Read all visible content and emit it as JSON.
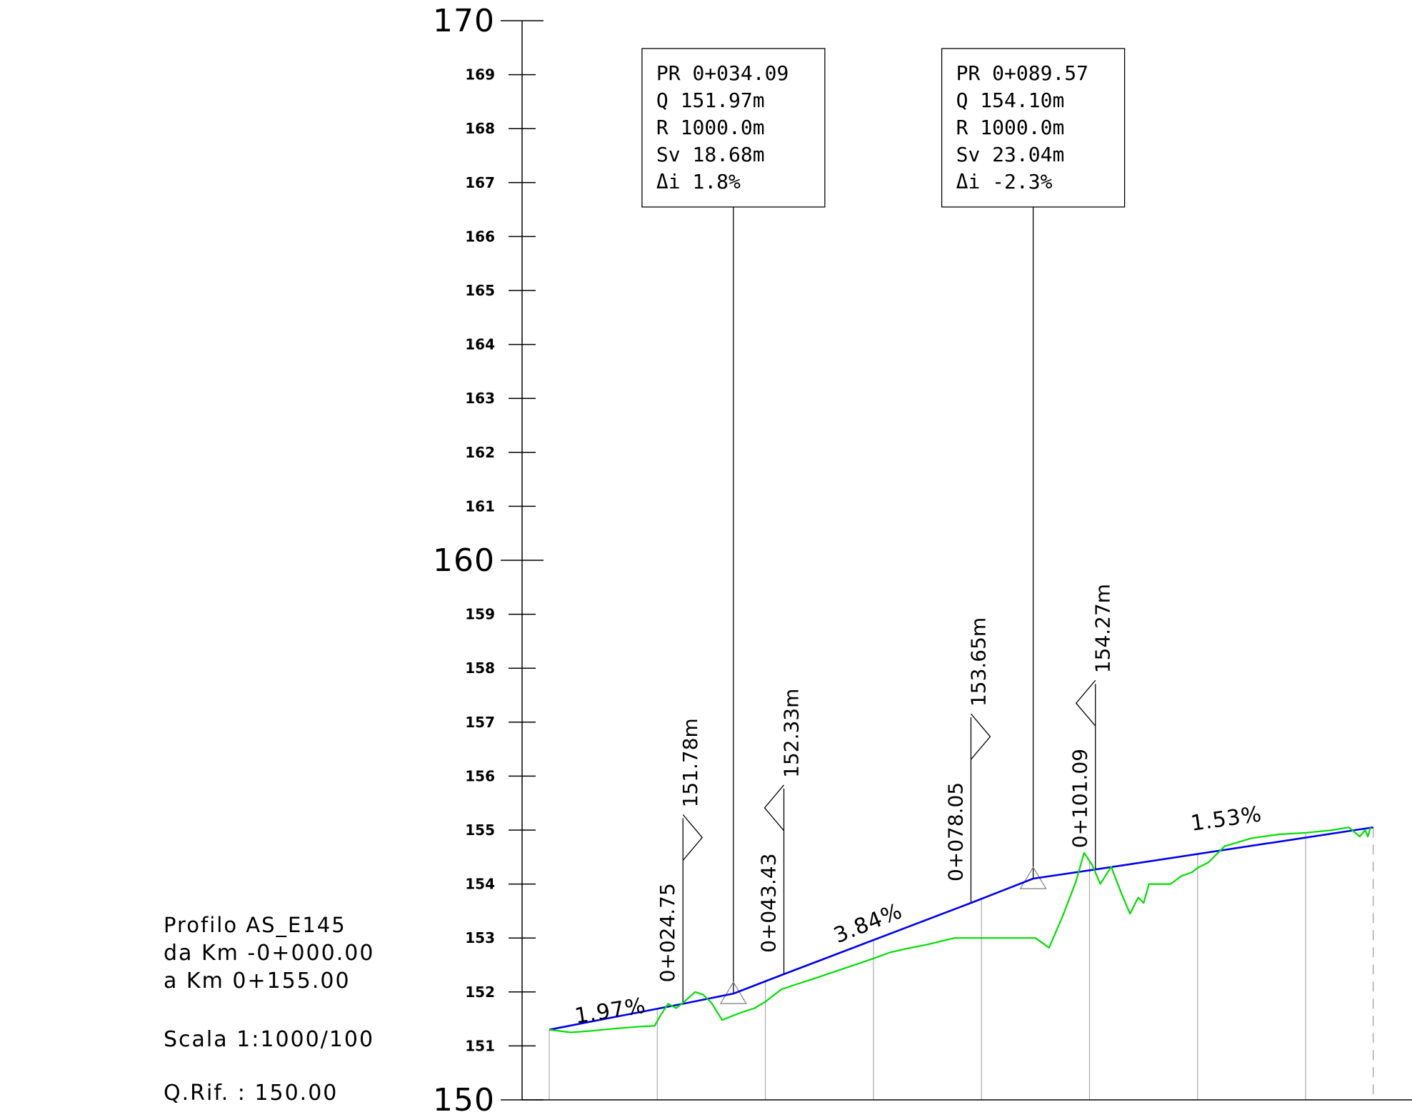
{
  "profile_info": {
    "title": "Profilo AS_E145",
    "from": "da Km  -0+000.00",
    "to": "a Km  0+155.00",
    "scale": "Scala 1:1000/100",
    "ref": "Q.Rif. : 150.00"
  },
  "chart_data": {
    "type": "line",
    "title": "",
    "xlabel": "",
    "ylabel": "",
    "xlim": [
      0,
      155
    ],
    "ylim": [
      150,
      170
    ],
    "major_ticks": [
      "150",
      "160",
      "170"
    ],
    "minor_ticks": [
      "151",
      "152",
      "153",
      "154",
      "155",
      "156",
      "157",
      "158",
      "159",
      "161",
      "162",
      "163",
      "164",
      "165",
      "166",
      "167",
      "168",
      "169"
    ],
    "station_lines": [
      0,
      20,
      40,
      60,
      80,
      100,
      120,
      140,
      152.5
    ],
    "series": [
      {
        "key": "design",
        "color": "#0000ee",
        "x": [
          0,
          24.75,
          34.09,
          43.43,
          78.05,
          89.57,
          101.09,
          152.5
        ],
        "y": [
          151.3,
          151.78,
          151.97,
          152.33,
          153.65,
          154.1,
          154.27,
          155.05
        ]
      },
      {
        "key": "terrain",
        "color": "#00dd00",
        "x": [
          0,
          4,
          8,
          12,
          17,
          19.5,
          20.5,
          22,
          23.5,
          25,
          27,
          28.5,
          30,
          32,
          35,
          38,
          40,
          43,
          46,
          50,
          55,
          60,
          63,
          66,
          70,
          75,
          80,
          85,
          90,
          92.5,
          95,
          97.5,
          99,
          100.5,
          102,
          104,
          106,
          107.5,
          109,
          110,
          111,
          113,
          115,
          117,
          119,
          120,
          122,
          125,
          130,
          135,
          140,
          145,
          148,
          150,
          151,
          151.5,
          152
        ],
        "y": [
          151.3,
          151.25,
          151.28,
          151.32,
          151.36,
          151.37,
          151.55,
          151.78,
          151.7,
          151.82,
          152.0,
          151.95,
          151.8,
          151.48,
          151.6,
          151.7,
          151.82,
          152.05,
          152.15,
          152.28,
          152.45,
          152.62,
          152.73,
          152.8,
          152.88,
          153.0,
          153.0,
          153.0,
          153.0,
          152.82,
          153.4,
          154.05,
          154.58,
          154.35,
          154.0,
          154.32,
          153.8,
          153.45,
          153.75,
          153.65,
          154.0,
          154.0,
          154.0,
          154.15,
          154.22,
          154.3,
          154.4,
          154.7,
          154.85,
          154.92,
          154.95,
          155.0,
          155.05,
          154.88,
          155.0,
          154.88,
          155.05
        ]
      }
    ],
    "grade_labels": [
      {
        "text": "1.97%",
        "x": 11.5,
        "y": 151.52
      },
      {
        "text": "3.84%",
        "x": 59.5,
        "y": 153.15
      },
      {
        "text": "1.53%",
        "x": 125.5,
        "y": 155.08
      }
    ],
    "vertical_curves": [
      {
        "pr": "PR  0+034.09",
        "q": "Q   151.97m",
        "r": "R   1000.0m",
        "sv": "Sv  18.68m",
        "di": "Δi  1.8%",
        "x": 34.09,
        "y": 151.97
      },
      {
        "pr": "PR  0+089.57",
        "q": "Q   154.10m",
        "r": "R   1000.0m",
        "sv": "Sv  23.04m",
        "di": "Δi  -2.3%",
        "x": 89.57,
        "y": 154.1
      }
    ],
    "tangent_markers": [
      {
        "station": "0+024.75",
        "elev": "151.78m",
        "x": 24.75,
        "y": 151.78,
        "dir": "right"
      },
      {
        "station": "0+043.43",
        "elev": "152.33m",
        "x": 43.43,
        "y": 152.33,
        "dir": "left"
      },
      {
        "station": "0+078.05",
        "elev": "153.65m",
        "x": 78.05,
        "y": 153.65,
        "dir": "right"
      },
      {
        "station": "0+101.09",
        "elev": "154.27m",
        "x": 101.09,
        "y": 154.27,
        "dir": "left"
      }
    ]
  }
}
